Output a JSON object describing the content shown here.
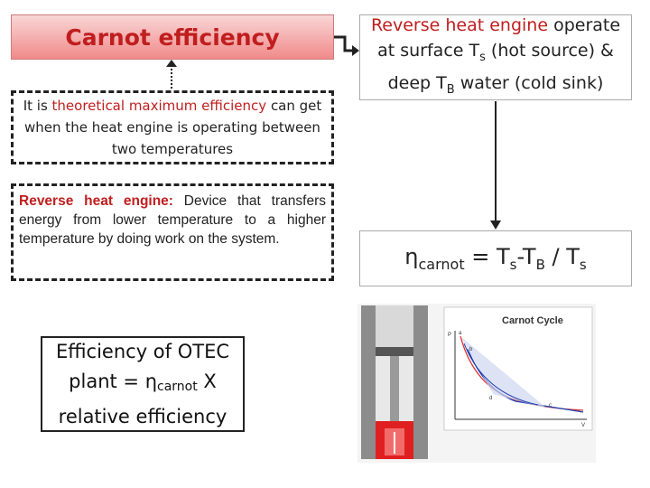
{
  "title": "Carnot efficiency",
  "definition": {
    "part1": "It is ",
    "highlight": "theoretical maximum efficiency",
    "part2": " can get when the heat engine is operating between two temperatures"
  },
  "reverse_engine": {
    "term": "Reverse heat engine:",
    "text": " Device that transfers energy from lower temperature to a higher temperature by doing work on the system."
  },
  "otec": {
    "line1": "Efficiency of OTEC",
    "line2_pre": "plant = ",
    "eta": "η",
    "eta_sub": "carnot",
    "line2_post": " X",
    "line3": "relative efficiency"
  },
  "reverse_box": {
    "highlight": "Reverse heat engine",
    "part1": " operate at surface T",
    "sub_s": "s",
    "part2": " (hot source) & deep T",
    "sub_b": "B",
    "part3": " water (cold sink)"
  },
  "formula": {
    "eta": "η",
    "eta_sub": "carnot",
    "eq": " = T",
    "sub1": "s",
    "minus": "-T",
    "sub2": "B",
    "slash": " / T",
    "sub3": "s"
  },
  "image": {
    "title": "Carnot Cycle",
    "point_labels": [
      "a",
      "b",
      "c",
      "d"
    ],
    "axis_v": "V",
    "axis_p": "P"
  },
  "colors": {
    "accent_red": "#c01e1e",
    "title_bg": "#f08a8a",
    "piston_red": "#e02020",
    "curve_blue": "#1a3fb5"
  }
}
